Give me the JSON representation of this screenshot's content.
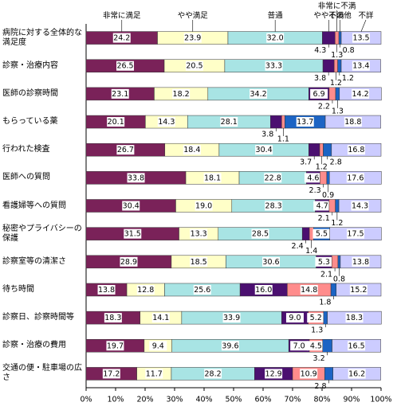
{
  "chart_data": {
    "type": "stacked-bar",
    "orientation": "horizontal",
    "categories": [
      "病院に対する全体的な満足度",
      "診察・治療内容",
      "医師の診察時間",
      "もらっている薬",
      "行われた検査",
      "医師への質問",
      "看護婦等への質問",
      "秘密やプライバシーの保護",
      "診察室等の清潔さ",
      "待ち時間",
      "診察日、診察時間等",
      "診察・治療の費用",
      "交通の便・駐車場の広さ"
    ],
    "series": [
      {
        "name": "非常に満足",
        "color": "#7a2259",
        "values": [
          24.2,
          26.5,
          23.1,
          20.1,
          26.7,
          33.8,
          30.4,
          31.5,
          28.9,
          13.8,
          18.3,
          19.7,
          17.2
        ],
        "value_labels": [
          "24.2",
          "26.5",
          "23.1",
          "20.1",
          "26.7",
          "33.8",
          "30.4",
          "31.5",
          "28.9",
          "13.8",
          "18.3",
          "19.7",
          "17.2"
        ]
      },
      {
        "name": "やや満足",
        "color": "#ffffc8",
        "values": [
          23.9,
          20.5,
          18.2,
          14.3,
          18.4,
          18.1,
          19.0,
          13.3,
          18.5,
          12.8,
          14.1,
          9.4,
          11.7
        ],
        "value_labels": [
          "23.9",
          "20.5",
          "18.2",
          "14.3",
          "18.4",
          "18.1",
          "19.0",
          "13.3",
          "18.5",
          "12.8",
          "14.1",
          "9.4",
          "11.7"
        ]
      },
      {
        "name": "普通",
        "color": "#a8e4e4",
        "values": [
          32.0,
          33.3,
          34.2,
          28.1,
          30.4,
          22.8,
          28.3,
          28.5,
          30.6,
          25.6,
          33.9,
          39.6,
          28.2
        ],
        "value_labels": [
          "32.0",
          "33.3",
          "34.2",
          "28.1",
          "30.4",
          "22.8",
          "28.3",
          "28.5",
          "30.6",
          "25.6",
          "33.9",
          "39.6",
          "28.2"
        ]
      },
      {
        "name": "やや不満",
        "color": "#4b1070",
        "values": [
          4.3,
          3.8,
          6.9,
          3.8,
          3.7,
          4.6,
          4.7,
          2.4,
          5.3,
          16.0,
          9.0,
          7.0,
          12.9
        ],
        "value_labels": [
          "4.3",
          "3.8",
          "6.9",
          "3.8",
          "3.7",
          "4.6",
          "4.7",
          "2.4",
          "5.3",
          "16.0",
          "9.0",
          "7.0",
          "12.9"
        ]
      },
      {
        "name": "非常に不満",
        "color": "#ff8c8c",
        "values": [
          1.3,
          1.2,
          2.2,
          1.1,
          1.2,
          2.3,
          2.1,
          1.4,
          2.1,
          14.8,
          5.2,
          4.5,
          10.9
        ],
        "value_labels": [
          "1.3",
          "1.2",
          "2.2",
          "1.1",
          "1.2",
          "2.3",
          "2.1",
          "1.4",
          "2.1",
          "14.8",
          "5.2",
          "4.5",
          "10.9"
        ]
      },
      {
        "name": "その他",
        "color": "#1c64c4",
        "values": [
          0.8,
          1.2,
          1.3,
          13.7,
          2.8,
          0.9,
          1.2,
          5.5,
          0.8,
          1.8,
          1.3,
          3.2,
          2.8
        ],
        "value_labels": [
          "0.8",
          "1.2",
          "1.3",
          "13.7",
          "2.8",
          "0.9",
          "1.2",
          "5.5",
          "0.8",
          "1.8",
          "1.3",
          "3.2",
          "2.8"
        ]
      },
      {
        "name": "不詳",
        "color": "#ccccff",
        "values": [
          13.5,
          13.4,
          14.2,
          18.8,
          16.8,
          17.6,
          14.3,
          17.5,
          13.8,
          15.2,
          18.3,
          16.5,
          16.2
        ],
        "value_labels": [
          "13.5",
          "13.4",
          "14.2",
          "18.8",
          "16.8",
          "17.6",
          "14.3",
          "17.5",
          "13.8",
          "15.2",
          "18.3",
          "16.5",
          "16.2"
        ]
      }
    ],
    "xlim": [
      0,
      100
    ],
    "xticks": [
      {
        "value": 0,
        "label": "0%"
      },
      {
        "value": 10,
        "label": "10%"
      },
      {
        "value": 20,
        "label": "20%"
      },
      {
        "value": 30,
        "label": "30%"
      },
      {
        "value": 40,
        "label": "40%"
      },
      {
        "value": 50,
        "label": "50%"
      },
      {
        "value": 60,
        "label": "60%"
      },
      {
        "value": 70,
        "label": "70%"
      },
      {
        "value": 80,
        "label": "80%"
      },
      {
        "value": 90,
        "label": "90%"
      },
      {
        "value": 100,
        "label": "100%"
      }
    ]
  }
}
